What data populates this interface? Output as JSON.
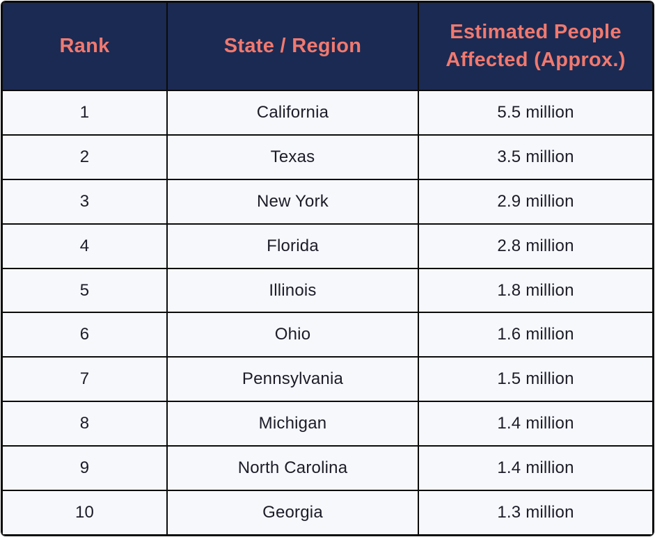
{
  "table": {
    "columns": [
      "Rank",
      "State / Region",
      "Estimated People Affected (Approx.)"
    ],
    "rows": [
      {
        "rank": "1",
        "state": "California",
        "affected": "5.5 million"
      },
      {
        "rank": "2",
        "state": "Texas",
        "affected": "3.5 million"
      },
      {
        "rank": "3",
        "state": "New York",
        "affected": "2.9 million"
      },
      {
        "rank": "4",
        "state": "Florida",
        "affected": "2.8 million"
      },
      {
        "rank": "5",
        "state": "Illinois",
        "affected": "1.8 million"
      },
      {
        "rank": "6",
        "state": "Ohio",
        "affected": "1.6 million"
      },
      {
        "rank": "7",
        "state": "Pennsylvania",
        "affected": "1.5 million"
      },
      {
        "rank": "8",
        "state": "Michigan",
        "affected": "1.4 million"
      },
      {
        "rank": "9",
        "state": "North Carolina",
        "affected": "1.4 million"
      },
      {
        "rank": "10",
        "state": "Georgia",
        "affected": "1.3 million"
      }
    ]
  },
  "chart_data": {
    "type": "table",
    "title": "",
    "columns": [
      "Rank",
      "State / Region",
      "Estimated People Affected (Approx.)"
    ],
    "rows": [
      [
        "1",
        "California",
        "5.5 million"
      ],
      [
        "2",
        "Texas",
        "3.5 million"
      ],
      [
        "3",
        "New York",
        "2.9 million"
      ],
      [
        "4",
        "Florida",
        "2.8 million"
      ],
      [
        "5",
        "Illinois",
        "1.8 million"
      ],
      [
        "6",
        "Ohio",
        "1.6 million"
      ],
      [
        "7",
        "Pennsylvania",
        "1.5 million"
      ],
      [
        "8",
        "Michigan",
        "1.4 million"
      ],
      [
        "9",
        "North Carolina",
        "1.4 million"
      ],
      [
        "10",
        "Georgia",
        "1.3 million"
      ]
    ],
    "values_numeric_millions": [
      5.5,
      3.5,
      2.9,
      2.8,
      1.8,
      1.6,
      1.5,
      1.4,
      1.4,
      1.3
    ]
  },
  "colors": {
    "header_bg": "#1B2A52",
    "header_text": "#F1796F",
    "row_bg": "#F7F8FC",
    "border": "#0B0B0B",
    "cell_text": "#1C1C28"
  }
}
